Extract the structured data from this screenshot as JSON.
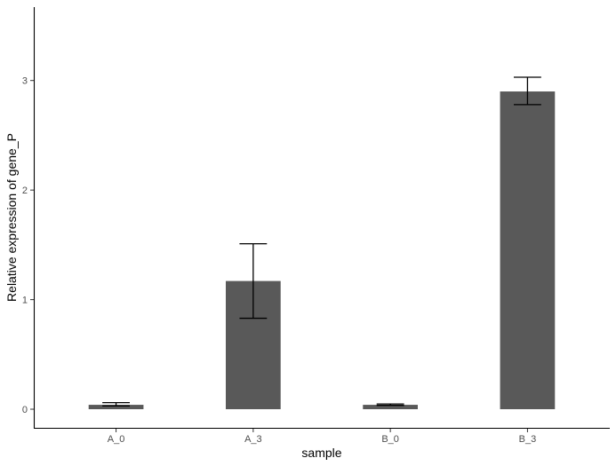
{
  "chart_data": {
    "type": "bar",
    "title": "",
    "xlabel": "sample",
    "ylabel": "Relative expression of gene_P",
    "categories": [
      "A_0",
      "A_3",
      "B_0",
      "B_3"
    ],
    "values": [
      0.04,
      1.17,
      0.04,
      2.9
    ],
    "error_low": [
      0.03,
      0.83,
      0.035,
      2.78
    ],
    "error_high": [
      0.06,
      1.51,
      0.048,
      3.03
    ],
    "yticks": [
      0,
      1,
      2,
      3
    ],
    "ylim": [
      -0.17,
      3.67
    ],
    "grid": false,
    "legend": "none",
    "colors": {
      "bar": "#595959",
      "axis": "#000000",
      "errorbar": "#000000",
      "tick_text": "#4d4d4d"
    }
  }
}
